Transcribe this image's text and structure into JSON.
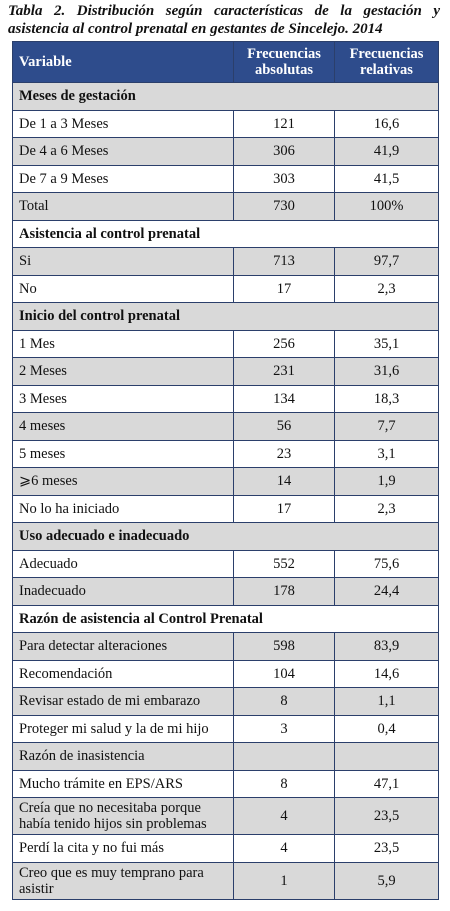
{
  "header": {
    "title": "Tabla 2. Distribución según características de la gestación y asistencia al control prenatal en gestantes de Sincelejo. 2014"
  },
  "table": {
    "columns": [
      "Variable",
      "Frecuencias absolutas",
      "Frecuencias relativas"
    ],
    "groups": [
      {
        "title": "Meses de gestación",
        "rows": [
          [
            "De 1 a 3 Meses",
            "121",
            "16,6"
          ],
          [
            "De 4 a 6 Meses",
            "306",
            "41,9"
          ],
          [
            "De 7 a 9 Meses",
            "303",
            "41,5"
          ],
          [
            "Total",
            "730",
            "100%"
          ]
        ]
      },
      {
        "title": "Asistencia al control prenatal",
        "rows": [
          [
            "Si",
            "713",
            "97,7"
          ],
          [
            "No",
            "17",
            "2,3"
          ]
        ]
      },
      {
        "title": "Inicio del control prenatal",
        "rows": [
          [
            "1 Mes",
            "256",
            "35,1"
          ],
          [
            "2 Meses",
            "231",
            "31,6"
          ],
          [
            "3 Meses",
            "134",
            "18,3"
          ],
          [
            "4 meses",
            "56",
            "7,7"
          ],
          [
            "5 meses",
            "23",
            "3,1"
          ],
          [
            "⩾6 meses",
            "14",
            "1,9"
          ],
          [
            "No lo ha iniciado",
            "17",
            "2,3"
          ]
        ]
      },
      {
        "title": "Uso  adecuado e inadecuado",
        "rows": [
          [
            "Adecuado",
            "552",
            "75,6"
          ],
          [
            "Inadecuado",
            "178",
            "24,4"
          ]
        ]
      },
      {
        "title": "Razón de asistencia al Control Prenatal",
        "rows": [
          [
            "Para detectar alteraciones",
            "598",
            "83,9"
          ],
          [
            "Recomendación",
            "104",
            "14,6"
          ],
          [
            "Revisar estado de mi embarazo",
            "8",
            "1,1"
          ],
          [
            "Proteger mi salud y la de mi hijo",
            "3",
            "0,4"
          ],
          [
            "Razón de inasistencia"
          ],
          [
            "Mucho trámite en EPS/ARS",
            "8",
            "47,1"
          ],
          [
            "Creía que no necesitaba porque había tenido hijos sin problemas",
            "4",
            "23,5"
          ],
          [
            "Perdí la cita y no fui más",
            "4",
            "23,5"
          ],
          [
            "Creo que es muy temprano para asistir",
            "1",
            "5,9"
          ]
        ]
      }
    ]
  }
}
